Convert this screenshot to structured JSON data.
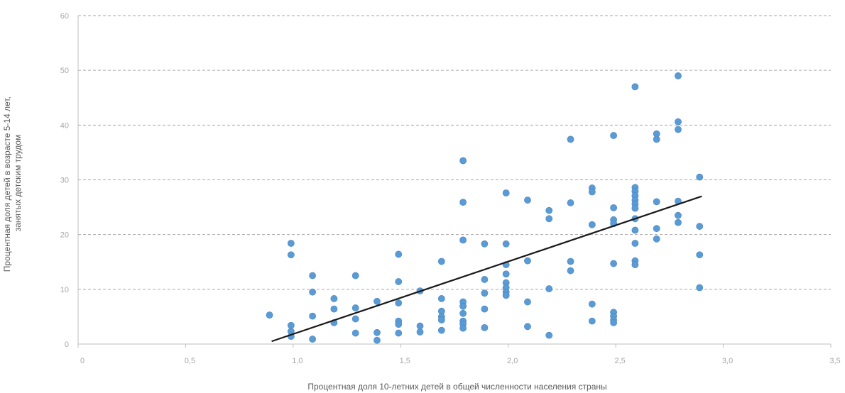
{
  "chart_data": {
    "type": "scatter",
    "title": "",
    "xlabel": "Процентная доля 10-летних детей в общей численности населения страны",
    "ylabel_lines": [
      "Процентная доля детей в возрасте 5-14 лет,",
      "занятых детским трудом"
    ],
    "xlim": [
      0,
      3.5
    ],
    "ylim": [
      0,
      60
    ],
    "x_ticks": [
      {
        "value": 0,
        "label": "0"
      },
      {
        "value": 0.5,
        "label": "0,5"
      },
      {
        "value": 1.0,
        "label": "1,0"
      },
      {
        "value": 1.5,
        "label": "1,5"
      },
      {
        "value": 2.0,
        "label": "2,0"
      },
      {
        "value": 2.5,
        "label": "2,5"
      },
      {
        "value": 3.0,
        "label": "3,0"
      },
      {
        "value": 3.5,
        "label": "3,5"
      }
    ],
    "y_ticks": [
      {
        "value": 0,
        "label": "0"
      },
      {
        "value": 10,
        "label": "10"
      },
      {
        "value": 20,
        "label": "20"
      },
      {
        "value": 30,
        "label": "30"
      },
      {
        "value": 40,
        "label": "40"
      },
      {
        "value": 50,
        "label": "50"
      },
      {
        "value": 60,
        "label": "60"
      }
    ],
    "grid": {
      "horizontal": true,
      "style": "dashed"
    },
    "colors": {
      "points": "#5b9bd5",
      "trendline": "#1a1a1a",
      "grid": "#a6a6a6",
      "axis": "#bfbfbf"
    },
    "trendline": {
      "x": [
        0.9,
        2.9
      ],
      "y": [
        0.5,
        27.0
      ]
    },
    "points": [
      {
        "x": 0.89,
        "y": 5.3
      },
      {
        "x": 0.99,
        "y": 18.4
      },
      {
        "x": 0.99,
        "y": 16.3
      },
      {
        "x": 0.99,
        "y": 3.4
      },
      {
        "x": 0.99,
        "y": 2.3
      },
      {
        "x": 0.99,
        "y": 1.4
      },
      {
        "x": 1.09,
        "y": 12.5
      },
      {
        "x": 1.09,
        "y": 9.5
      },
      {
        "x": 1.09,
        "y": 5.1
      },
      {
        "x": 1.09,
        "y": 0.9
      },
      {
        "x": 1.19,
        "y": 8.3
      },
      {
        "x": 1.19,
        "y": 6.4
      },
      {
        "x": 1.19,
        "y": 3.9
      },
      {
        "x": 1.29,
        "y": 12.5
      },
      {
        "x": 1.29,
        "y": 6.6
      },
      {
        "x": 1.29,
        "y": 4.6
      },
      {
        "x": 1.29,
        "y": 2.0
      },
      {
        "x": 1.39,
        "y": 7.8
      },
      {
        "x": 1.39,
        "y": 2.1
      },
      {
        "x": 1.39,
        "y": 0.7
      },
      {
        "x": 1.49,
        "y": 16.4
      },
      {
        "x": 1.49,
        "y": 11.4
      },
      {
        "x": 1.49,
        "y": 7.5
      },
      {
        "x": 1.49,
        "y": 4.2
      },
      {
        "x": 1.49,
        "y": 3.6
      },
      {
        "x": 1.49,
        "y": 2.0
      },
      {
        "x": 1.59,
        "y": 9.7
      },
      {
        "x": 1.59,
        "y": 3.3
      },
      {
        "x": 1.59,
        "y": 2.2
      },
      {
        "x": 1.69,
        "y": 15.1
      },
      {
        "x": 1.69,
        "y": 8.3
      },
      {
        "x": 1.69,
        "y": 6.0
      },
      {
        "x": 1.69,
        "y": 5.0
      },
      {
        "x": 1.69,
        "y": 4.4
      },
      {
        "x": 1.69,
        "y": 2.5
      },
      {
        "x": 1.79,
        "y": 33.5
      },
      {
        "x": 1.79,
        "y": 25.9
      },
      {
        "x": 1.79,
        "y": 19.0
      },
      {
        "x": 1.79,
        "y": 7.7
      },
      {
        "x": 1.79,
        "y": 6.9
      },
      {
        "x": 1.79,
        "y": 5.6
      },
      {
        "x": 1.79,
        "y": 4.2
      },
      {
        "x": 1.79,
        "y": 3.7
      },
      {
        "x": 1.79,
        "y": 2.9
      },
      {
        "x": 1.89,
        "y": 18.3
      },
      {
        "x": 1.89,
        "y": 11.8
      },
      {
        "x": 1.89,
        "y": 9.3
      },
      {
        "x": 1.89,
        "y": 6.4
      },
      {
        "x": 1.89,
        "y": 3.0
      },
      {
        "x": 1.99,
        "y": 27.6
      },
      {
        "x": 1.99,
        "y": 18.3
      },
      {
        "x": 1.99,
        "y": 14.5
      },
      {
        "x": 1.99,
        "y": 12.8
      },
      {
        "x": 1.99,
        "y": 11.2
      },
      {
        "x": 1.99,
        "y": 10.3
      },
      {
        "x": 1.99,
        "y": 9.5
      },
      {
        "x": 1.99,
        "y": 8.9
      },
      {
        "x": 2.09,
        "y": 26.3
      },
      {
        "x": 2.09,
        "y": 15.2
      },
      {
        "x": 2.09,
        "y": 7.7
      },
      {
        "x": 2.09,
        "y": 3.2
      },
      {
        "x": 2.19,
        "y": 24.4
      },
      {
        "x": 2.19,
        "y": 22.9
      },
      {
        "x": 2.19,
        "y": 10.1
      },
      {
        "x": 2.19,
        "y": 1.6
      },
      {
        "x": 2.29,
        "y": 37.4
      },
      {
        "x": 2.29,
        "y": 25.8
      },
      {
        "x": 2.29,
        "y": 15.1
      },
      {
        "x": 2.29,
        "y": 13.4
      },
      {
        "x": 2.39,
        "y": 28.5
      },
      {
        "x": 2.39,
        "y": 27.8
      },
      {
        "x": 2.39,
        "y": 21.8
      },
      {
        "x": 2.39,
        "y": 7.3
      },
      {
        "x": 2.39,
        "y": 4.2
      },
      {
        "x": 2.49,
        "y": 38.1
      },
      {
        "x": 2.49,
        "y": 24.9
      },
      {
        "x": 2.49,
        "y": 22.7
      },
      {
        "x": 2.49,
        "y": 22.0
      },
      {
        "x": 2.49,
        "y": 14.7
      },
      {
        "x": 2.49,
        "y": 5.8
      },
      {
        "x": 2.49,
        "y": 5.1
      },
      {
        "x": 2.49,
        "y": 4.4
      },
      {
        "x": 2.49,
        "y": 3.9
      },
      {
        "x": 2.59,
        "y": 47.0
      },
      {
        "x": 2.59,
        "y": 28.6
      },
      {
        "x": 2.59,
        "y": 27.9
      },
      {
        "x": 2.59,
        "y": 27.1
      },
      {
        "x": 2.59,
        "y": 26.3
      },
      {
        "x": 2.59,
        "y": 25.6
      },
      {
        "x": 2.59,
        "y": 24.8
      },
      {
        "x": 2.59,
        "y": 22.9
      },
      {
        "x": 2.59,
        "y": 20.8
      },
      {
        "x": 2.59,
        "y": 18.4
      },
      {
        "x": 2.59,
        "y": 15.2
      },
      {
        "x": 2.59,
        "y": 14.5
      },
      {
        "x": 2.69,
        "y": 38.4
      },
      {
        "x": 2.69,
        "y": 37.4
      },
      {
        "x": 2.69,
        "y": 26.0
      },
      {
        "x": 2.69,
        "y": 21.1
      },
      {
        "x": 2.69,
        "y": 19.2
      },
      {
        "x": 2.79,
        "y": 49.0
      },
      {
        "x": 2.79,
        "y": 40.6
      },
      {
        "x": 2.79,
        "y": 39.2
      },
      {
        "x": 2.79,
        "y": 26.1
      },
      {
        "x": 2.79,
        "y": 23.5
      },
      {
        "x": 2.79,
        "y": 22.2
      },
      {
        "x": 2.89,
        "y": 30.5
      },
      {
        "x": 2.89,
        "y": 21.5
      },
      {
        "x": 2.89,
        "y": 16.3
      },
      {
        "x": 2.89,
        "y": 10.3
      }
    ]
  }
}
